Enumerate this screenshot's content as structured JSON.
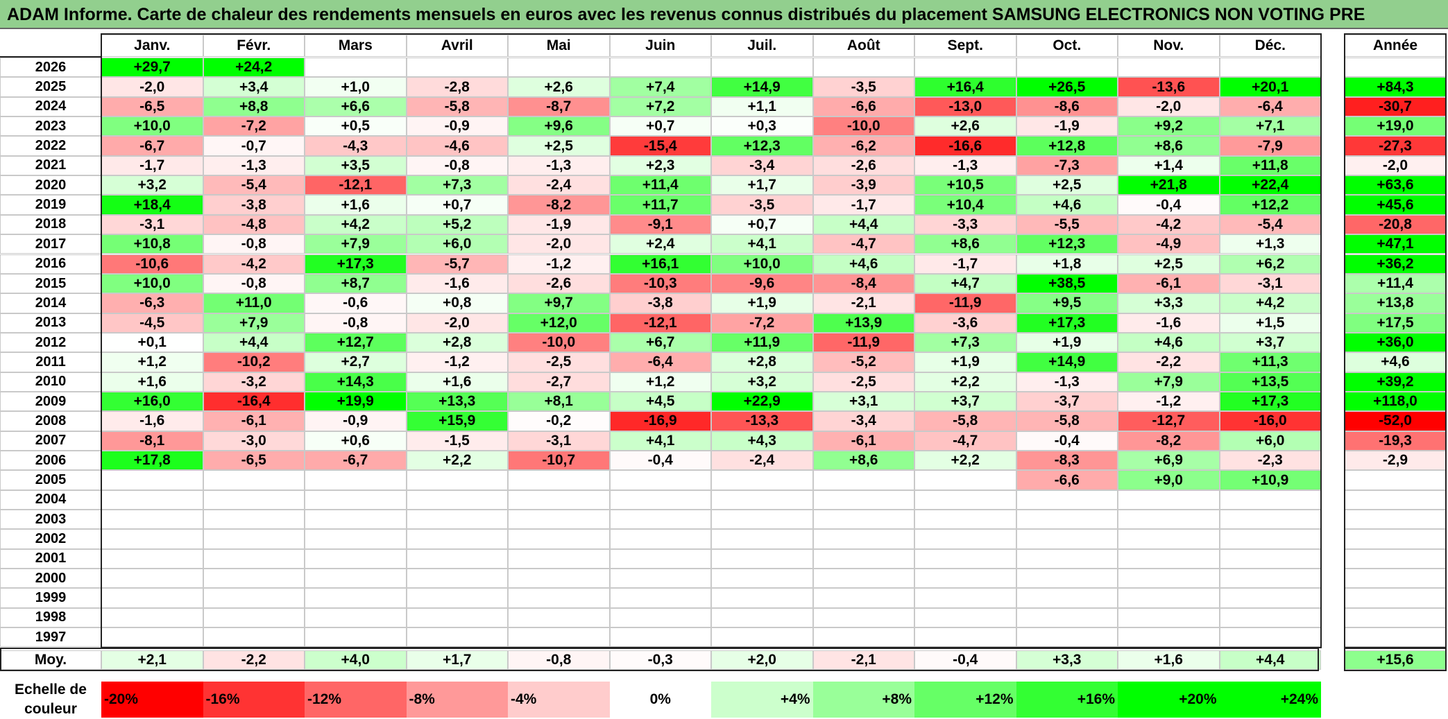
{
  "title": "ADAM Informe. Carte de chaleur des rendements mensuels en euros avec les revenus connus distribués du placement SAMSUNG ELECTRONICS NON VOTING PRE",
  "chart_data": {
    "type": "heatmap",
    "title": "ADAM Informe. Carte de chaleur des rendements mensuels en euros avec les revenus connus distribués du placement SAMSUNG ELECTRONICS NON VOTING PRE",
    "months": [
      "Janv.",
      "Févr.",
      "Mars",
      "Avril",
      "Mai",
      "Juin",
      "Juil.",
      "Août",
      "Sept.",
      "Oct.",
      "Nov.",
      "Déc."
    ],
    "annual_header": "Année",
    "rows": [
      {
        "year": "2026",
        "months": [
          "+29,7",
          "+24,2",
          "",
          "",
          "",
          "",
          "",
          "",
          "",
          "",
          "",
          ""
        ],
        "annual": ""
      },
      {
        "year": "2025",
        "months": [
          "-2,0",
          "+3,4",
          "+1,0",
          "-2,8",
          "+2,6",
          "+7,4",
          "+14,9",
          "-3,5",
          "+16,4",
          "+26,5",
          "-13,6",
          "+20,1"
        ],
        "annual": "+84,3"
      },
      {
        "year": "2024",
        "months": [
          "-6,5",
          "+8,8",
          "+6,6",
          "-5,8",
          "-8,7",
          "+7,2",
          "+1,1",
          "-6,6",
          "-13,0",
          "-8,6",
          "-2,0",
          "-6,4"
        ],
        "annual": "-30,7"
      },
      {
        "year": "2023",
        "months": [
          "+10,0",
          "-7,2",
          "+0,5",
          "-0,9",
          "+9,6",
          "+0,7",
          "+0,3",
          "-10,0",
          "+2,6",
          "-1,9",
          "+9,2",
          "+7,1"
        ],
        "annual": "+19,0"
      },
      {
        "year": "2022",
        "months": [
          "-6,7",
          "-0,7",
          "-4,3",
          "-4,6",
          "+2,5",
          "-15,4",
          "+12,3",
          "-6,2",
          "-16,6",
          "+12,8",
          "+8,6",
          "-7,9"
        ],
        "annual": "-27,3"
      },
      {
        "year": "2021",
        "months": [
          "-1,7",
          "-1,3",
          "+3,5",
          "-0,8",
          "-1,3",
          "+2,3",
          "-3,4",
          "-2,6",
          "-1,3",
          "-7,3",
          "+1,4",
          "+11,8"
        ],
        "annual": "-2,0"
      },
      {
        "year": "2020",
        "months": [
          "+3,2",
          "-5,4",
          "-12,1",
          "+7,3",
          "-2,4",
          "+11,4",
          "+1,7",
          "-3,9",
          "+10,5",
          "+2,5",
          "+21,8",
          "+22,4"
        ],
        "annual": "+63,6"
      },
      {
        "year": "2019",
        "months": [
          "+18,4",
          "-3,8",
          "+1,6",
          "+0,7",
          "-8,2",
          "+11,7",
          "-3,5",
          "-1,7",
          "+10,4",
          "+4,6",
          "-0,4",
          "+12,2"
        ],
        "annual": "+45,6"
      },
      {
        "year": "2018",
        "months": [
          "-3,1",
          "-4,8",
          "+4,2",
          "+5,2",
          "-1,9",
          "-9,1",
          "+0,7",
          "+4,4",
          "-3,3",
          "-5,5",
          "-4,2",
          "-5,4"
        ],
        "annual": "-20,8"
      },
      {
        "year": "2017",
        "months": [
          "+10,8",
          "-0,8",
          "+7,9",
          "+6,0",
          "-2,0",
          "+2,4",
          "+4,1",
          "-4,7",
          "+8,6",
          "+12,3",
          "-4,9",
          "+1,3"
        ],
        "annual": "+47,1"
      },
      {
        "year": "2016",
        "months": [
          "-10,6",
          "-4,2",
          "+17,3",
          "-5,7",
          "-1,2",
          "+16,1",
          "+10,0",
          "+4,6",
          "-1,7",
          "+1,8",
          "+2,5",
          "+6,2"
        ],
        "annual": "+36,2"
      },
      {
        "year": "2015",
        "months": [
          "+10,0",
          "-0,8",
          "+8,7",
          "-1,6",
          "-2,6",
          "-10,3",
          "-9,6",
          "-8,4",
          "+4,7",
          "+38,5",
          "-6,1",
          "-3,1"
        ],
        "annual": "+11,4"
      },
      {
        "year": "2014",
        "months": [
          "-6,3",
          "+11,0",
          "-0,6",
          "+0,8",
          "+9,7",
          "-3,8",
          "+1,9",
          "-2,1",
          "-11,9",
          "+9,5",
          "+3,3",
          "+4,2"
        ],
        "annual": "+13,8"
      },
      {
        "year": "2013",
        "months": [
          "-4,5",
          "+7,9",
          "-0,8",
          "-2,0",
          "+12,0",
          "-12,1",
          "-7,2",
          "+13,9",
          "-3,6",
          "+17,3",
          "-1,6",
          "+1,5"
        ],
        "annual": "+17,5"
      },
      {
        "year": "2012",
        "months": [
          "+0,1",
          "+4,4",
          "+12,7",
          "+2,8",
          "-10,0",
          "+6,7",
          "+11,9",
          "-11,9",
          "+7,3",
          "+1,9",
          "+4,6",
          "+3,7"
        ],
        "annual": "+36,0"
      },
      {
        "year": "2011",
        "months": [
          "+1,2",
          "-10,2",
          "+2,7",
          "-1,2",
          "-2,5",
          "-6,4",
          "+2,8",
          "-5,2",
          "+1,9",
          "+14,9",
          "-2,2",
          "+11,3"
        ],
        "annual": "+4,6"
      },
      {
        "year": "2010",
        "months": [
          "+1,6",
          "-3,2",
          "+14,3",
          "+1,6",
          "-2,7",
          "+1,2",
          "+3,2",
          "-2,5",
          "+2,2",
          "-1,3",
          "+7,9",
          "+13,5"
        ],
        "annual": "+39,2"
      },
      {
        "year": "2009",
        "months": [
          "+16,0",
          "-16,4",
          "+19,9",
          "+13,3",
          "+8,1",
          "+4,5",
          "+22,9",
          "+3,1",
          "+3,7",
          "-3,7",
          "-1,2",
          "+17,3"
        ],
        "annual": "+118,0"
      },
      {
        "year": "2008",
        "months": [
          "-1,6",
          "-6,1",
          "-0,9",
          "+15,9",
          "-0,2",
          "-16,9",
          "-13,3",
          "-3,4",
          "-5,8",
          "-5,8",
          "-12,7",
          "-16,0"
        ],
        "annual": "-52,0"
      },
      {
        "year": "2007",
        "months": [
          "-8,1",
          "-3,0",
          "+0,6",
          "-1,5",
          "-3,1",
          "+4,1",
          "+4,3",
          "-6,1",
          "-4,7",
          "-0,4",
          "-8,2",
          "+6,0"
        ],
        "annual": "-19,3"
      },
      {
        "year": "2006",
        "months": [
          "+17,8",
          "-6,5",
          "-6,7",
          "+2,2",
          "-10,7",
          "-0,4",
          "-2,4",
          "+8,6",
          "+2,2",
          "-8,3",
          "+6,9",
          "-2,3"
        ],
        "annual": "-2,9"
      },
      {
        "year": "2005",
        "months": [
          "",
          "",
          "",
          "",
          "",
          "",
          "",
          "",
          "",
          "-6,6",
          "+9,0",
          "+10,9"
        ],
        "annual": ""
      },
      {
        "year": "2004",
        "months": [
          "",
          "",
          "",
          "",
          "",
          "",
          "",
          "",
          "",
          "",
          "",
          ""
        ],
        "annual": ""
      },
      {
        "year": "2003",
        "months": [
          "",
          "",
          "",
          "",
          "",
          "",
          "",
          "",
          "",
          "",
          "",
          ""
        ],
        "annual": ""
      },
      {
        "year": "2002",
        "months": [
          "",
          "",
          "",
          "",
          "",
          "",
          "",
          "",
          "",
          "",
          "",
          ""
        ],
        "annual": ""
      },
      {
        "year": "2001",
        "months": [
          "",
          "",
          "",
          "",
          "",
          "",
          "",
          "",
          "",
          "",
          "",
          ""
        ],
        "annual": ""
      },
      {
        "year": "2000",
        "months": [
          "",
          "",
          "",
          "",
          "",
          "",
          "",
          "",
          "",
          "",
          "",
          ""
        ],
        "annual": ""
      },
      {
        "year": "1999",
        "months": [
          "",
          "",
          "",
          "",
          "",
          "",
          "",
          "",
          "",
          "",
          "",
          ""
        ],
        "annual": ""
      },
      {
        "year": "1998",
        "months": [
          "",
          "",
          "",
          "",
          "",
          "",
          "",
          "",
          "",
          "",
          "",
          ""
        ],
        "annual": ""
      },
      {
        "year": "1997",
        "months": [
          "",
          "",
          "",
          "",
          "",
          "",
          "",
          "",
          "",
          "",
          "",
          ""
        ],
        "annual": ""
      }
    ],
    "average": {
      "label": "Moy.",
      "months": [
        "+2,1",
        "-2,2",
        "+4,0",
        "+1,7",
        "-0,8",
        "-0,3",
        "+2,0",
        "-2,1",
        "-0,4",
        "+3,3",
        "+1,6",
        "+4,4"
      ],
      "annual": "+15,6"
    },
    "color_scale": {
      "label_line1": "Echelle de",
      "label_line2": "couleur",
      "stops": [
        "-20%",
        "-16%",
        "-12%",
        "-8%",
        "-4%",
        "0%",
        "+4%",
        "+8%",
        "+12%",
        "+16%",
        "+20%",
        "+24%"
      ],
      "values": [
        -20,
        -16,
        -12,
        -8,
        -4,
        0,
        4,
        8,
        12,
        16,
        20,
        24
      ]
    }
  }
}
